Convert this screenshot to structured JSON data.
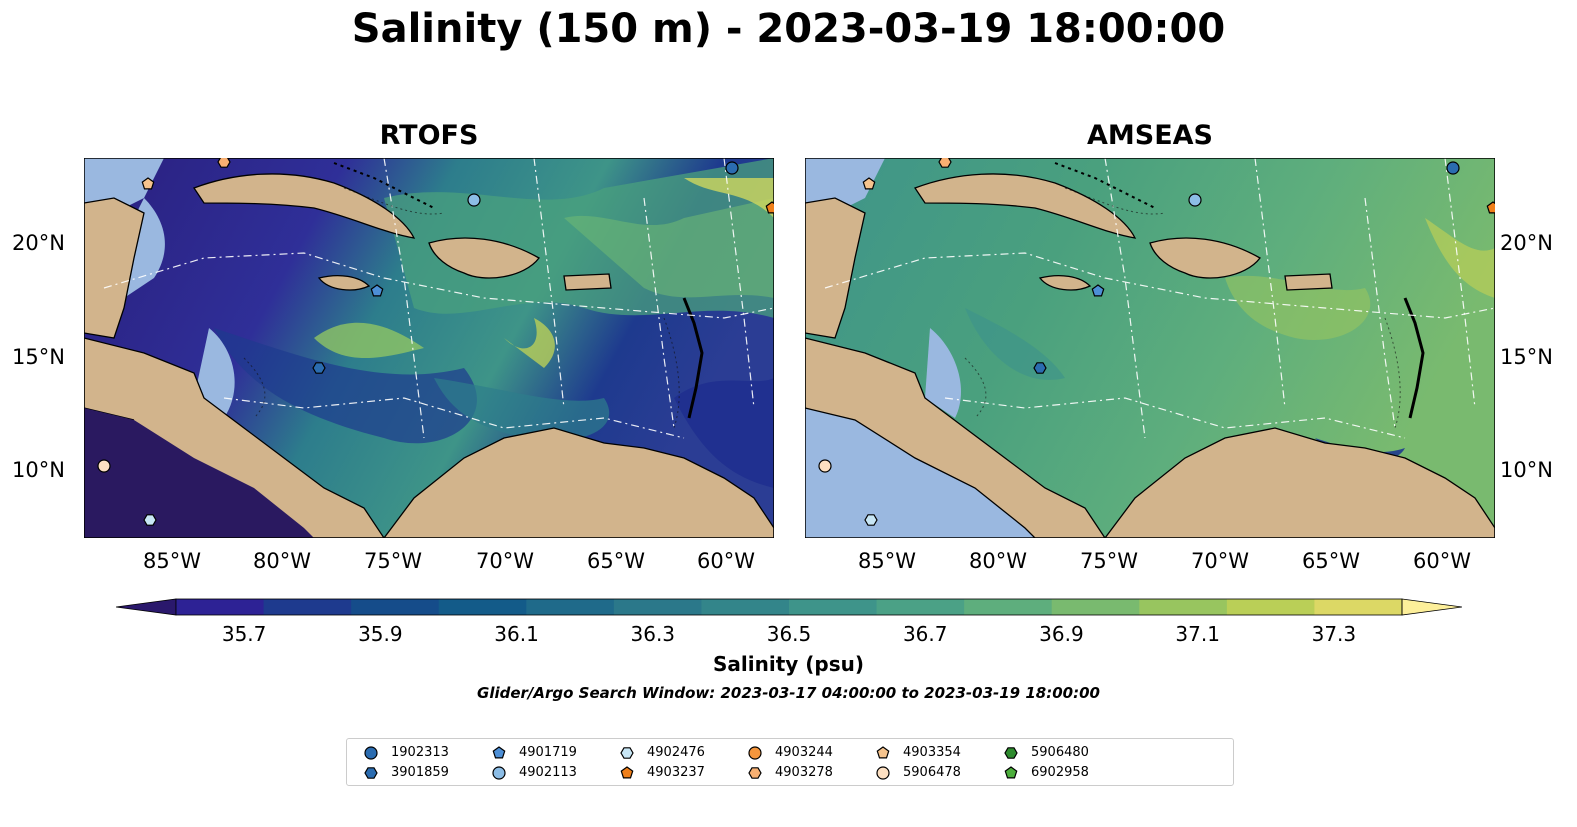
{
  "title": "Salinity (150 m) - 2023-03-19 18:00:00",
  "panels": [
    {
      "title": "RTOFS",
      "model": "rtofs"
    },
    {
      "title": "AMSEAS",
      "model": "amseas"
    }
  ],
  "lat_ticks": [
    "20°N",
    "15°N",
    "10°N"
  ],
  "lon_ticks": [
    "85°W",
    "80°W",
    "75°W",
    "70°W",
    "65°W",
    "60°W"
  ],
  "colorbar": {
    "label": "Salinity (psu)",
    "ticks": [
      "35.7",
      "35.9",
      "36.1",
      "36.3",
      "36.5",
      "36.7",
      "36.9",
      "37.1",
      "37.3"
    ],
    "range": [
      35.6,
      37.4
    ],
    "colormap": "haline",
    "colors": [
      "#2a186c",
      "#2d2295",
      "#1e3a8e",
      "#154c8a",
      "#135b89",
      "#1f6a8a",
      "#2b788a",
      "#33858a",
      "#3e948a",
      "#4ba186",
      "#5eae7d",
      "#79ba6f",
      "#98c55f",
      "#bacf57",
      "#dcd865",
      "#fdef9a"
    ]
  },
  "search_window": "Glider/Argo Search Window: 2023-03-17 04:00:00 to 2023-03-19 18:00:00",
  "legend": [
    {
      "id": "1902313",
      "marker": "circle",
      "color": "#2b6cb0"
    },
    {
      "id": "3901859",
      "marker": "hexagon",
      "color": "#2b6cb0"
    },
    {
      "id": "4901719",
      "marker": "pentagon",
      "color": "#4d8fd6"
    },
    {
      "id": "4902113",
      "marker": "circle",
      "color": "#8cbde6"
    },
    {
      "id": "4902476",
      "marker": "hexagon",
      "color": "#c8e6f5"
    },
    {
      "id": "4903237",
      "marker": "pentagon",
      "color": "#ef7f1a"
    },
    {
      "id": "4903244",
      "marker": "circle",
      "color": "#f5963c"
    },
    {
      "id": "4903278",
      "marker": "hexagon",
      "color": "#f8b072"
    },
    {
      "id": "4903354",
      "marker": "pentagon",
      "color": "#f6c48e"
    },
    {
      "id": "5906478",
      "marker": "circle",
      "color": "#fde0c2"
    },
    {
      "id": "5906480",
      "marker": "hexagon",
      "color": "#2e8b2e"
    },
    {
      "id": "6902958",
      "marker": "pentagon",
      "color": "#4cae3c"
    }
  ],
  "colors": {
    "land": "#d2b48c",
    "shelf_mask": "#9ab8e0",
    "rtofs_base": "#2d2a8c",
    "amseas_base": "#4aa078"
  }
}
